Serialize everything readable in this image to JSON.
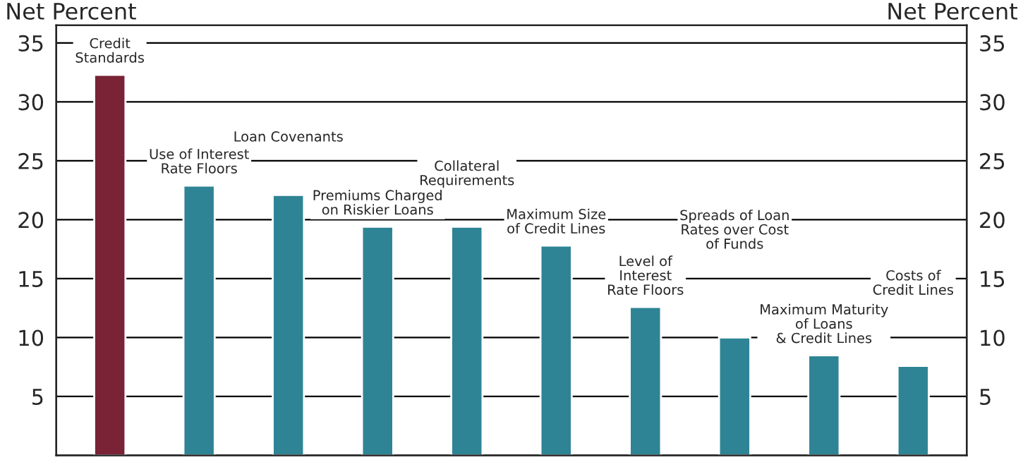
{
  "chart_data": {
    "type": "bar",
    "categories": [
      "Credit\nStandards",
      "Use of Interest\nRate Floors",
      "Loan Covenants",
      "Premiums Charged\non Riskier Loans",
      "Collateral\nRequirements",
      "Maximum Size\nof Credit Lines",
      "Level of\nInterest\nRate Floors",
      "Spreads of Loan\nRates over Cost\nof Funds",
      "Maximum Maturity\nof Loans\n& Credit Lines",
      "Costs of\nCredit Lines"
    ],
    "values": [
      32.3,
      22.9,
      22.1,
      19.4,
      19.4,
      17.8,
      12.6,
      10.0,
      8.5,
      7.6
    ],
    "colors": [
      "#7a2236",
      "#2e8494",
      "#2e8494",
      "#2e8494",
      "#2e8494",
      "#2e8494",
      "#2e8494",
      "#2e8494",
      "#2e8494",
      "#2e8494"
    ],
    "ylabel": "Net Percent",
    "y2label": "Net Percent",
    "ylim": [
      0,
      36.5
    ],
    "yticks": [
      5,
      10,
      15,
      20,
      25,
      30,
      35
    ],
    "y2lim": [
      0,
      36.5
    ],
    "y2ticks": [
      5,
      10,
      15,
      20,
      25,
      30,
      35
    ],
    "grid": "y",
    "tick_labels": "y"
  }
}
